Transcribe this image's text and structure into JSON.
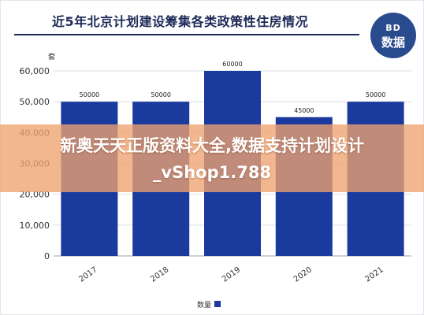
{
  "header": {
    "title": "近5年北京计划建设筹集各类政策性住房情况"
  },
  "logo": {
    "line1": "BD",
    "line2": "数据"
  },
  "overlay": {
    "line1": "新奥天天正版资料大全,数据支持计划设计",
    "line2": "_vShop1.788"
  },
  "colors": {
    "bar": "#1b3a9e",
    "title": "#1c2a57",
    "overlay": "#f0a370"
  },
  "chart_data": {
    "type": "bar",
    "title": "近5年北京计划建设筹集各类政策性住房情况",
    "y_unit_label": "套",
    "categories": [
      "2017",
      "2018",
      "2019",
      "2020",
      "2021"
    ],
    "series": [
      {
        "name": "数量",
        "values": [
          50000,
          50000,
          60000,
          45000,
          50000
        ]
      }
    ],
    "data_labels": [
      "50000",
      "50000",
      "60000",
      "45000",
      "50000"
    ],
    "ylim": [
      0,
      60000
    ],
    "y_ticks": [
      0,
      10000,
      20000,
      30000,
      40000,
      50000,
      60000
    ],
    "y_tick_labels": [
      "0",
      "10,000",
      "20,000",
      "30,000",
      "40,000",
      "50,000",
      "60,000"
    ],
    "grid": true,
    "legend": "bottom-center"
  }
}
